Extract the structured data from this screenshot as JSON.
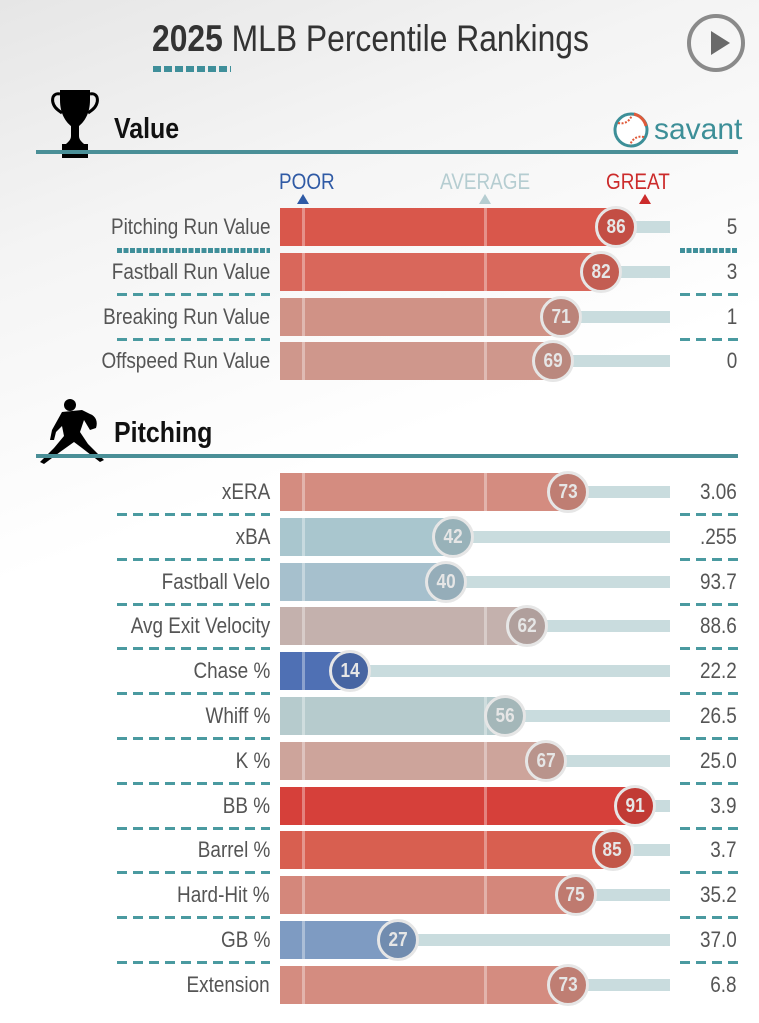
{
  "header": {
    "year": "2025",
    "title": "MLB Percentile Rankings",
    "play_button": "play-icon"
  },
  "brand": {
    "name": "savant",
    "icon": "baseball-icon",
    "color": "#3d8f98"
  },
  "scale": {
    "poor": {
      "label": "POOR",
      "color": "#2f5aa5"
    },
    "average": {
      "label": "AVERAGE",
      "color": "#b5cdd1"
    },
    "great": {
      "label": "GREAT",
      "color": "#cc2b2b"
    }
  },
  "sections": [
    {
      "title": "Value",
      "icon": "trophy-icon"
    },
    {
      "title": "Pitching",
      "icon": "pitcher-icon"
    }
  ],
  "chart_data": {
    "type": "bar",
    "title": "2025 MLB Percentile Rankings",
    "xlabel": "Percentile",
    "ylabel": "",
    "xlim": [
      0,
      100
    ],
    "scale_labels": [
      "POOR",
      "AVERAGE",
      "GREAT"
    ],
    "groups": [
      {
        "name": "Value",
        "metrics": [
          {
            "label": "Pitching Run Value",
            "percentile": 86,
            "value": "5",
            "color": "#d9574b"
          },
          {
            "label": "Fastball Run Value",
            "percentile": 82,
            "value": "3",
            "color": "#d9675b"
          },
          {
            "label": "Breaking Run Value",
            "percentile": 71,
            "value": "1",
            "color": "#d09286"
          },
          {
            "label": "Offspeed Run Value",
            "percentile": 69,
            "value": "0",
            "color": "#cf978c"
          }
        ]
      },
      {
        "name": "Pitching",
        "metrics": [
          {
            "label": "xERA",
            "percentile": 73,
            "value": "3.06",
            "color": "#d48c80"
          },
          {
            "label": "xBA",
            "percentile": 42,
            "value": ".255",
            "color": "#a9c6ce"
          },
          {
            "label": "Fastball Velo",
            "percentile": 40,
            "value": "93.7",
            "color": "#a6c0cd"
          },
          {
            "label": "Avg Exit Velocity",
            "percentile": 62,
            "value": "88.6",
            "color": "#c4b1ad"
          },
          {
            "label": "Chase %",
            "percentile": 14,
            "value": "22.2",
            "color": "#4f70b4"
          },
          {
            "label": "Whiff %",
            "percentile": 56,
            "value": "26.5",
            "color": "#b6cbcd"
          },
          {
            "label": "K %",
            "percentile": 67,
            "value": "25.0",
            "color": "#cda49b"
          },
          {
            "label": "BB %",
            "percentile": 91,
            "value": "3.9",
            "color": "#d6403a"
          },
          {
            "label": "Barrel %",
            "percentile": 85,
            "value": "3.7",
            "color": "#d85f50"
          },
          {
            "label": "Hard-Hit %",
            "percentile": 75,
            "value": "35.2",
            "color": "#d4877b"
          },
          {
            "label": "GB %",
            "percentile": 27,
            "value": "37.0",
            "color": "#7e9bc2"
          },
          {
            "label": "Extension",
            "percentile": 73,
            "value": "6.8",
            "color": "#d48c80"
          }
        ]
      }
    ]
  }
}
